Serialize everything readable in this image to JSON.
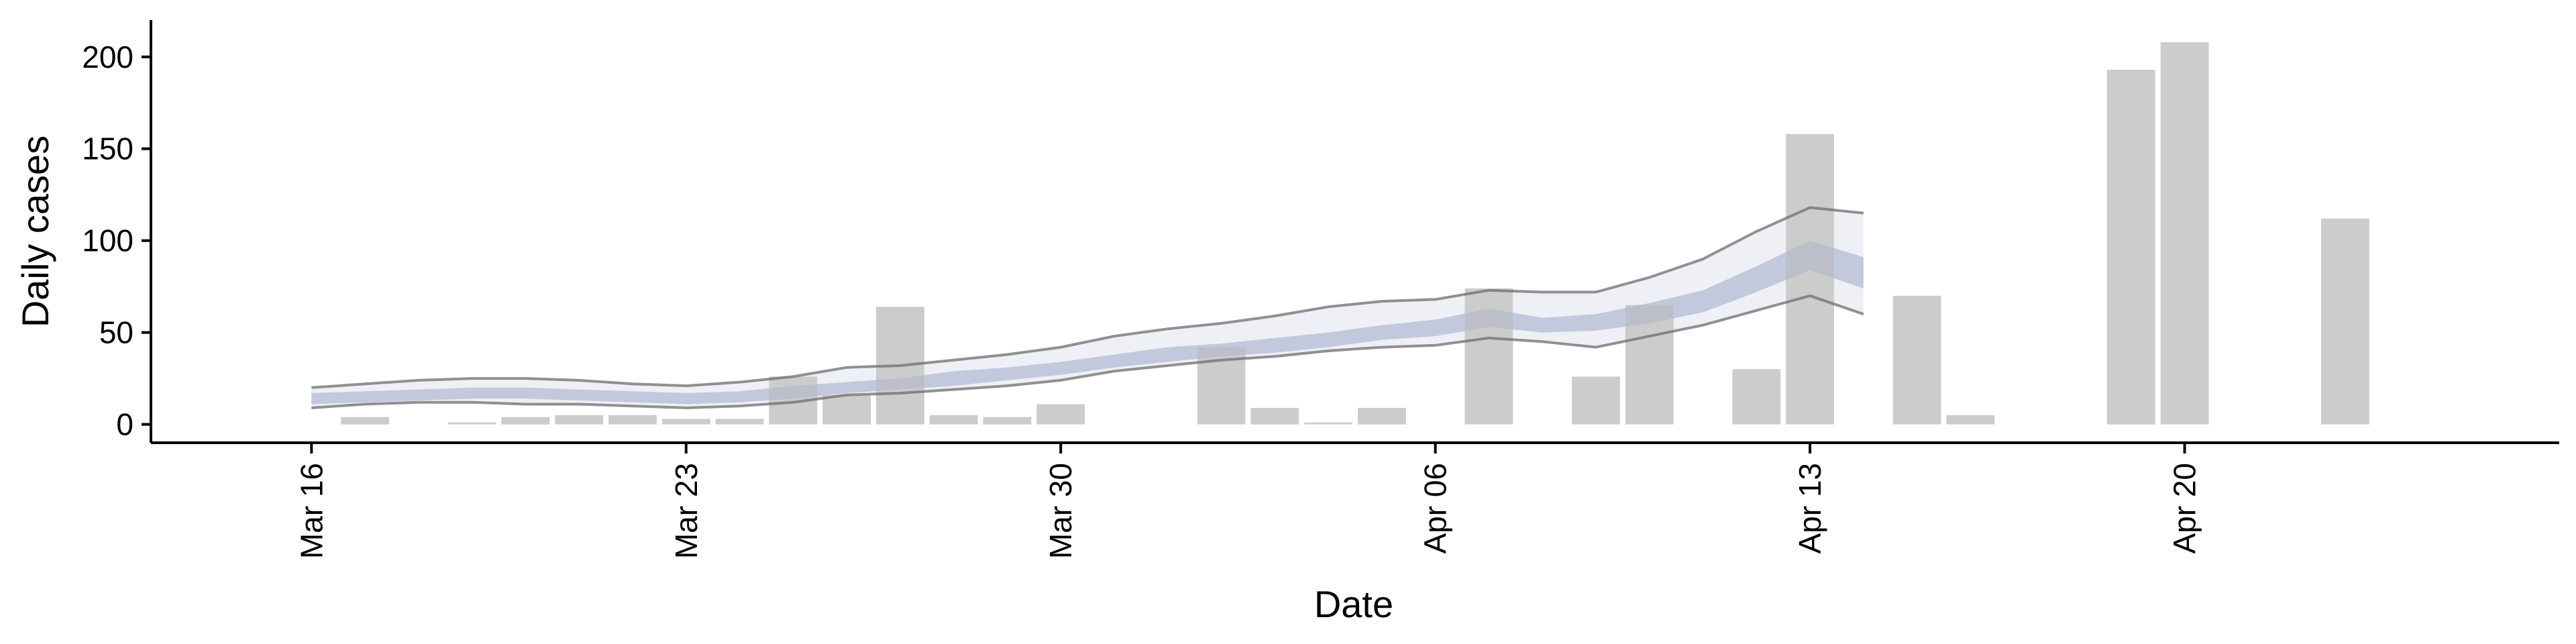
{
  "chart_data": {
    "type": "bar",
    "title": "",
    "xlabel": "Date",
    "ylabel": "Daily cases",
    "ylim": [
      -10,
      220
    ],
    "y_ticks": [
      0,
      50,
      100,
      150,
      200
    ],
    "x_ticks": [
      {
        "date": "2020-03-16",
        "label": "Mar 16"
      },
      {
        "date": "2020-03-23",
        "label": "Mar 23"
      },
      {
        "date": "2020-03-30",
        "label": "Mar 30"
      },
      {
        "date": "2020-04-06",
        "label": "Apr 06"
      },
      {
        "date": "2020-04-13",
        "label": "Apr 13"
      },
      {
        "date": "2020-04-20",
        "label": "Apr 20"
      }
    ],
    "xlim": [
      "2020-03-13",
      "2020-04-27"
    ],
    "grid": false,
    "bars": {
      "color": "#cccccc",
      "x": [
        "2020-03-17",
        "2020-03-19",
        "2020-03-20",
        "2020-03-21",
        "2020-03-22",
        "2020-03-23",
        "2020-03-24",
        "2020-03-25",
        "2020-03-26",
        "2020-03-27",
        "2020-03-28",
        "2020-03-29",
        "2020-03-30",
        "2020-04-02",
        "2020-04-03",
        "2020-04-04",
        "2020-04-05",
        "2020-04-07",
        "2020-04-09",
        "2020-04-10",
        "2020-04-12",
        "2020-04-13",
        "2020-04-15",
        "2020-04-16",
        "2020-04-19",
        "2020-04-20",
        "2020-04-23"
      ],
      "values": [
        4,
        1,
        4,
        5,
        5,
        3,
        3,
        26,
        16,
        64,
        5,
        4,
        11,
        42,
        9,
        1,
        9,
        74,
        26,
        65,
        30,
        158,
        70,
        5,
        193,
        208,
        112
      ]
    },
    "band": {
      "color": "#98a2c4",
      "x": [
        "2020-03-16",
        "2020-03-17",
        "2020-03-18",
        "2020-03-19",
        "2020-03-20",
        "2020-03-21",
        "2020-03-22",
        "2020-03-23",
        "2020-03-24",
        "2020-03-25",
        "2020-03-26",
        "2020-03-27",
        "2020-03-28",
        "2020-03-29",
        "2020-03-30",
        "2020-03-31",
        "2020-04-01",
        "2020-04-02",
        "2020-04-03",
        "2020-04-04",
        "2020-04-05",
        "2020-04-06",
        "2020-04-07",
        "2020-04-08",
        "2020-04-09",
        "2020-04-10",
        "2020-04-11",
        "2020-04-12",
        "2020-04-13",
        "2020-04-14"
      ],
      "median": [
        15,
        16,
        17,
        18,
        18,
        17,
        16,
        15,
        16,
        18,
        20,
        22,
        25,
        28,
        30,
        34,
        38,
        41,
        43,
        46,
        50,
        53,
        58,
        54,
        56,
        60,
        66,
        78,
        92,
        82
      ],
      "inner_lower": [
        11,
        12,
        13,
        14,
        14,
        13,
        12,
        11,
        12,
        14,
        17,
        19,
        21,
        24,
        27,
        31,
        34,
        37,
        39,
        42,
        46,
        48,
        53,
        50,
        51,
        55,
        61,
        72,
        84,
        74
      ],
      "inner_upper": [
        17,
        18,
        19,
        20,
        20,
        19,
        18,
        17,
        18,
        21,
        23,
        25,
        29,
        31,
        34,
        38,
        42,
        44,
        47,
        50,
        54,
        57,
        63,
        58,
        60,
        66,
        73,
        86,
        100,
        91
      ],
      "lower": [
        9,
        11,
        12,
        12,
        11,
        11,
        10,
        9,
        10,
        12,
        16,
        17,
        19,
        21,
        24,
        29,
        32,
        35,
        37,
        40,
        42,
        43,
        47,
        45,
        42,
        48,
        54,
        62,
        70,
        60
      ],
      "upper": [
        20,
        22,
        24,
        25,
        25,
        24,
        22,
        21,
        23,
        26,
        31,
        32,
        35,
        38,
        42,
        48,
        52,
        55,
        59,
        64,
        67,
        68,
        73,
        72,
        72,
        80,
        90,
        105,
        118,
        115
      ]
    }
  }
}
